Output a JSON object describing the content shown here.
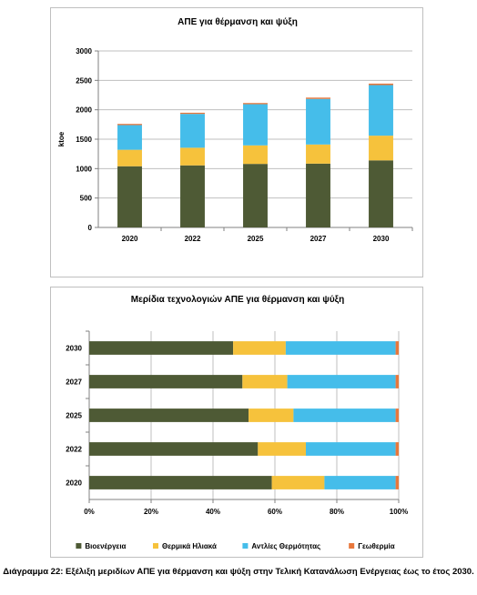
{
  "colors": {
    "bio": "#4e5a35",
    "solar": "#f6c23c",
    "heatpump": "#45bdea",
    "geo": "#e8773b",
    "grid": "#bfbfbf",
    "axis": "#808080"
  },
  "chart_data": [
    {
      "type": "bar",
      "stacked": true,
      "title": "ΑΠΕ για θέρμανση και ψύξη",
      "xlabel": "",
      "ylabel": "ktoe",
      "ylim": [
        0,
        3000
      ],
      "yticks": [
        "0",
        "500",
        "1000",
        "1500",
        "2000",
        "2500",
        "3000"
      ],
      "grid": true,
      "categories": [
        "2020",
        "2022",
        "2025",
        "2027",
        "2030"
      ],
      "series": [
        {
          "key": "bio",
          "values": [
            1040,
            1055,
            1080,
            1085,
            1140
          ]
        },
        {
          "key": "solar",
          "values": [
            280,
            300,
            315,
            325,
            420
          ]
        },
        {
          "key": "heatpump",
          "values": [
            420,
            575,
            700,
            775,
            860
          ]
        },
        {
          "key": "geo",
          "values": [
            20,
            20,
            20,
            22,
            25
          ]
        }
      ]
    },
    {
      "type": "bar",
      "orientation": "horizontal",
      "stacked_percent": true,
      "title": "Μερίδια τεχνολογιών ΑΠΕ για θέρμανση και ψύξη",
      "xlabel": "",
      "ylabel": "",
      "xlim": [
        0,
        100
      ],
      "xticks": [
        "0%",
        "20%",
        "40%",
        "60%",
        "80%",
        "100%"
      ],
      "grid": true,
      "legend_position": "bottom",
      "categories": [
        "2030",
        "2027",
        "2025",
        "2022",
        "2020"
      ],
      "series": [
        {
          "name": "Βιοενέργεια",
          "key": "bio",
          "values": [
            46.5,
            49.5,
            51.5,
            54.5,
            59
          ]
        },
        {
          "name": "Θερμικά Ηλιακά",
          "key": "solar",
          "values": [
            17,
            14.5,
            14.5,
            15.5,
            17
          ]
        },
        {
          "name": "Αντλίες Θερμότητας",
          "key": "heatpump",
          "values": [
            35.5,
            35,
            33,
            29,
            23
          ]
        },
        {
          "name": "Γεωθερμία",
          "key": "geo",
          "values": [
            1,
            1,
            1,
            1,
            1
          ]
        }
      ]
    }
  ],
  "caption": "Διάγραμμα 22: Εξέλιξη μεριδίων ΑΠΕ για θέρμανση και ψύξη στην Τελική Κατανάλωση Ενέργειας έως το έτος 2030."
}
